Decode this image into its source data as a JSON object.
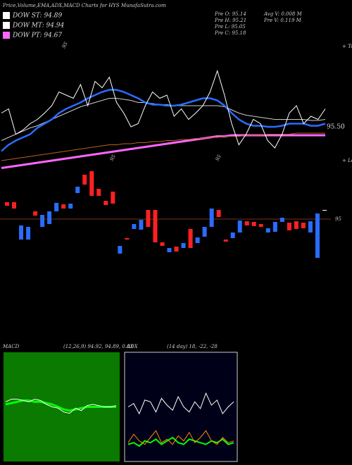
{
  "header": {
    "title": "Price,Volume,EMA,ADX,MACD Charts for HYS MunafaSutra.com",
    "dow": [
      {
        "label": "DOW ST: 94.89",
        "color": "#ffffff"
      },
      {
        "label": "DOW MT: 94.94",
        "color": "#ffffff"
      },
      {
        "label": "DOW PT: 94.67",
        "color": "#ff66ff"
      }
    ],
    "info_left": [
      "Pre  O: 95.14",
      "Pre  H: 95.21",
      "Pre  L: 95.05",
      "Pre  C: 95.18"
    ],
    "info_right": [
      "Avg V: 0.008  M",
      "Pre  V: 0.119 M"
    ],
    "top_note": "+ Tope",
    "low_note": "+ Lowe",
    "notes": [
      "95",
      "95",
      "95"
    ]
  },
  "chart_data": [
    {
      "type": "line",
      "ylim": [
        95.1,
        96.3
      ],
      "yticks": [
        {
          "value": 95.5,
          "label": "95.50"
        }
      ],
      "series": [
        {
          "color": "#ff66ff",
          "width": 3,
          "values": [
            95.11,
            95.12,
            95.13,
            95.14,
            95.15,
            95.16,
            95.17,
            95.18,
            95.19,
            95.2,
            95.21,
            95.22,
            95.23,
            95.24,
            95.25,
            95.26,
            95.27,
            95.28,
            95.29,
            95.3,
            95.31,
            95.32,
            95.33,
            95.34,
            95.35,
            95.36,
            95.37,
            95.38,
            95.39,
            95.4,
            95.41,
            95.41,
            95.42,
            95.42,
            95.42,
            95.42,
            95.42,
            95.42,
            95.42,
            95.42,
            95.42,
            95.42,
            95.42,
            95.42,
            95.42,
            95.42
          ]
        },
        {
          "color": "#b8621b",
          "width": 1,
          "values": [
            95.18,
            95.19,
            95.2,
            95.21,
            95.22,
            95.23,
            95.24,
            95.25,
            95.26,
            95.27,
            95.28,
            95.29,
            95.3,
            95.31,
            95.32,
            95.33,
            95.33,
            95.34,
            95.34,
            95.35,
            95.35,
            95.36,
            95.36,
            95.37,
            95.37,
            95.38,
            95.38,
            95.39,
            95.39,
            95.4,
            95.4,
            95.41,
            95.41,
            95.41,
            95.42,
            95.42,
            95.42,
            95.43,
            95.43,
            95.43,
            95.43,
            95.44,
            95.44,
            95.44,
            95.44,
            95.44
          ]
        },
        {
          "color": "#cccccc",
          "width": 1,
          "values": [
            95.37,
            95.4,
            95.43,
            95.46,
            95.49,
            95.51,
            95.54,
            95.57,
            95.6,
            95.63,
            95.66,
            95.69,
            95.71,
            95.73,
            95.75,
            95.77,
            95.77,
            95.76,
            95.75,
            95.73,
            95.73,
            95.72,
            95.71,
            95.71,
            95.7,
            95.7,
            95.7,
            95.7,
            95.7,
            95.7,
            95.7,
            95.69,
            95.66,
            95.63,
            95.61,
            95.6,
            95.59,
            95.58,
            95.57,
            95.57,
            95.57,
            95.57,
            95.57,
            95.56,
            95.56,
            95.57
          ]
        },
        {
          "color": "#2a6cff",
          "width": 2.5,
          "values": [
            95.27,
            95.33,
            95.37,
            95.4,
            95.43,
            95.49,
            95.53,
            95.57,
            95.63,
            95.67,
            95.7,
            95.73,
            95.77,
            95.8,
            95.83,
            95.85,
            95.85,
            95.83,
            95.8,
            95.77,
            95.73,
            95.71,
            95.71,
            95.7,
            95.7,
            95.71,
            95.73,
            95.75,
            95.77,
            95.77,
            95.75,
            95.7,
            95.63,
            95.57,
            95.53,
            95.51,
            95.51,
            95.5,
            95.5,
            95.51,
            95.53,
            95.53,
            95.53,
            95.51,
            95.51,
            95.53
          ]
        },
        {
          "color": "#ffffff",
          "width": 1,
          "values": [
            95.63,
            95.67,
            95.43,
            95.47,
            95.53,
            95.57,
            95.63,
            95.7,
            95.83,
            95.8,
            95.77,
            95.9,
            95.7,
            95.93,
            95.87,
            95.97,
            95.73,
            95.63,
            95.5,
            95.53,
            95.7,
            95.83,
            95.77,
            95.8,
            95.6,
            95.67,
            95.57,
            95.63,
            95.7,
            95.83,
            96.03,
            95.8,
            95.53,
            95.33,
            95.43,
            95.57,
            95.53,
            95.37,
            95.3,
            95.43,
            95.63,
            95.7,
            95.53,
            95.6,
            95.57,
            95.67
          ]
        }
      ]
    },
    {
      "type": "candlestick",
      "ylim": [
        94.6,
        95.45
      ],
      "yticks": [
        95
      ],
      "up_color": "#2a6cff",
      "down_color": "#ff2020",
      "open": [
        95.12,
        95.12,
        94.855,
        94.855,
        95.055,
        94.945,
        94.965,
        95.055,
        95.105,
        95.075,
        95.185,
        95.315,
        95.34,
        95.215,
        95.13,
        95.195,
        94.755,
        94.865,
        94.93,
        94.925,
        95.065,
        95.065,
        94.835,
        94.765,
        94.805,
        94.795,
        94.93,
        94.83,
        94.875,
        94.945,
        95.065,
        94.855,
        94.865,
        94.905,
        94.985,
        94.98,
        94.965,
        94.905,
        94.91,
        94.98,
        94.975,
        94.985,
        94.975,
        94.905,
        94.725,
        95.065
      ],
      "close": [
        95.095,
        95.075,
        94.955,
        94.945,
        95.025,
        95.03,
        95.055,
        95.115,
        95.075,
        95.11,
        95.23,
        95.245,
        95.165,
        95.165,
        95.1,
        95.11,
        94.81,
        94.855,
        94.965,
        94.995,
        94.945,
        94.835,
        94.81,
        94.795,
        94.77,
        94.83,
        94.795,
        94.87,
        94.945,
        95.075,
        95.015,
        94.84,
        94.905,
        94.99,
        94.955,
        94.95,
        94.945,
        94.935,
        94.98,
        95.01,
        94.92,
        94.93,
        94.935,
        94.985,
        95.04,
        95.065
      ]
    },
    {
      "type": "line",
      "title": "MACD",
      "subtitle": "(12,26,9) 94.92, 94.89, 0.03",
      "ylim": [
        -0.4,
        0.4
      ],
      "series": [
        {
          "color": "#00ff00",
          "width": 3,
          "values": [
            0.02,
            0.03,
            0.04,
            0.05,
            0.05,
            0.04,
            0.04,
            0.03,
            0.02,
            0.0,
            -0.02,
            -0.03,
            -0.02,
            -0.01,
            0.0,
            0.0,
            0.0,
            0.0,
            0.0,
            0.0
          ]
        },
        {
          "color": "#ffffff",
          "width": 1,
          "values": [
            0.04,
            0.06,
            0.06,
            0.05,
            0.04,
            0.06,
            0.05,
            0.02,
            0.0,
            -0.01,
            -0.04,
            -0.05,
            -0.01,
            -0.03,
            0.01,
            0.02,
            0.01,
            0.0,
            0.0,
            0.01
          ]
        }
      ]
    },
    {
      "type": "line",
      "title": "ADX",
      "subtitle": "(14 day) 18, -22, -28",
      "ylim": [
        0,
        60
      ],
      "series": [
        {
          "color": "#ffffff",
          "width": 1,
          "values": [
            30,
            32,
            26,
            34,
            33,
            27,
            35,
            31,
            28,
            36,
            30,
            27,
            33,
            29,
            38,
            31,
            34,
            26,
            30,
            33
          ]
        },
        {
          "color": "#00ff00",
          "width": 2,
          "values": [
            8,
            9,
            7,
            10,
            9,
            11,
            8,
            10,
            12,
            9,
            8,
            11,
            10,
            9,
            8,
            10,
            9,
            11,
            8,
            9
          ]
        },
        {
          "color": "#ff8800",
          "width": 1,
          "values": [
            9,
            14,
            10,
            8,
            12,
            16,
            9,
            11,
            8,
            13,
            10,
            15,
            9,
            12,
            16,
            10,
            8,
            12,
            9,
            10
          ]
        }
      ]
    }
  ]
}
